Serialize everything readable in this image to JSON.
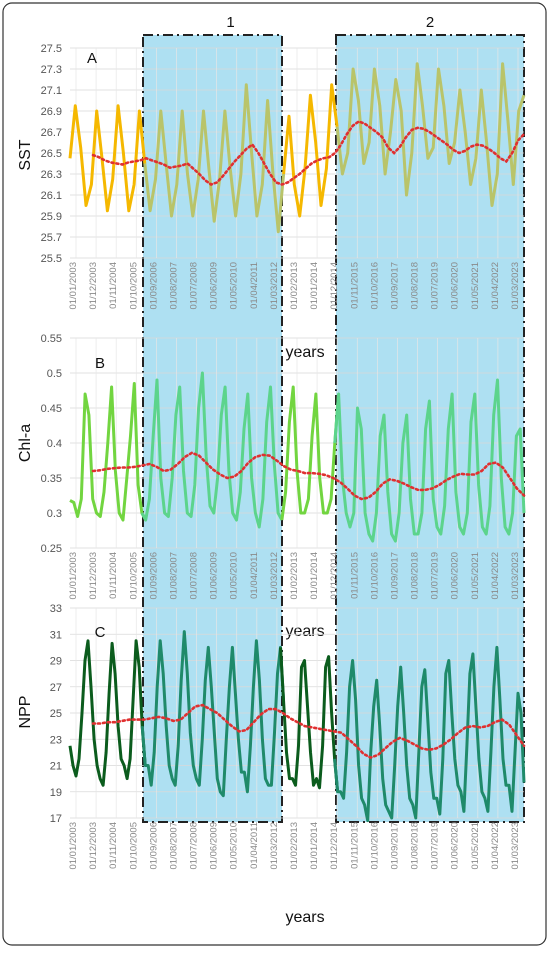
{
  "chart_data": [
    {
      "type": "line",
      "panel_letter": "A",
      "ylabel": "SST",
      "xlabel": "years",
      "ylim": [
        25.5,
        27.5
      ],
      "yticks": [
        "25.5",
        "25.7",
        "25.9",
        "26.1",
        "26.3",
        "26.5",
        "26.7",
        "26.9",
        "27.1",
        "27.3",
        "27.5"
      ],
      "colors": {
        "early": "#f5b800",
        "late": "#b9c46a",
        "trend": "#e03030"
      },
      "period_labels": [
        "1",
        "2"
      ],
      "series": [
        {
          "name": "",
          "values": [
            26.45,
            26.95,
            26.55,
            26.0,
            26.2,
            26.9,
            26.45,
            25.95,
            26.25,
            26.95,
            26.5,
            25.95,
            26.2,
            26.9,
            26.4,
            25.95,
            26.25,
            26.9,
            26.4,
            25.9,
            26.2,
            26.9,
            26.3,
            25.9,
            26.25,
            26.9,
            26.35,
            25.85,
            26.25,
            26.9,
            26.35,
            25.9,
            26.3,
            27.15,
            26.5,
            25.9,
            26.2,
            27.0,
            26.3,
            25.75,
            26.3,
            26.85,
            26.2,
            25.9,
            26.35,
            27.05,
            26.6,
            26.0,
            26.35,
            27.15,
            26.75,
            26.3,
            26.5,
            27.3,
            27.0,
            26.4,
            26.6,
            27.3,
            26.95,
            26.3,
            26.7,
            27.2,
            26.9,
            26.1,
            26.5,
            27.35,
            26.95,
            26.45,
            26.55,
            27.3,
            26.95,
            26.4,
            26.6,
            27.1,
            26.7,
            26.2,
            26.45,
            27.1,
            26.6,
            26.0,
            26.3,
            27.35,
            26.8,
            26.2,
            26.9,
            27.05
          ]
        },
        {
          "name": "",
          "values": [
            26.48,
            26.46,
            26.43,
            26.41,
            26.4,
            26.39,
            26.41,
            26.42,
            26.43,
            26.45,
            26.43,
            26.41,
            26.39,
            26.36,
            26.37,
            26.38,
            26.4,
            26.35,
            26.3,
            26.24,
            26.2,
            26.22,
            26.28,
            26.35,
            26.42,
            26.48,
            26.54,
            26.58,
            26.5,
            26.4,
            26.3,
            26.22,
            26.2,
            26.22,
            26.26,
            26.3,
            26.35,
            26.4,
            26.43,
            26.45,
            26.46,
            26.5,
            26.58,
            26.68,
            26.76,
            26.8,
            26.78,
            26.74,
            26.7,
            26.65,
            26.55,
            26.5,
            26.56,
            26.65,
            26.72,
            26.74,
            26.73,
            26.7,
            26.66,
            26.62,
            26.58,
            26.53,
            26.5,
            26.52,
            26.56,
            26.58,
            26.57,
            26.54,
            26.5,
            26.45,
            26.42,
            26.5,
            26.62,
            26.68
          ]
        }
      ]
    },
    {
      "type": "line",
      "panel_letter": "B",
      "ylabel": "Chl-a",
      "xlabel": "years",
      "ylim": [
        0.25,
        0.55
      ],
      "yticks": [
        "0.25",
        "0.3",
        "0.35",
        "0.4",
        "0.45",
        "0.5",
        "0.55"
      ],
      "colors": {
        "early": "#72d540",
        "late": "#5cd48c",
        "trend": "#e03030"
      },
      "series": [
        {
          "name": "",
          "values": [
            0.318,
            0.315,
            0.295,
            0.32,
            0.47,
            0.44,
            0.32,
            0.3,
            0.295,
            0.33,
            0.4,
            0.48,
            0.36,
            0.3,
            0.29,
            0.35,
            0.41,
            0.485,
            0.34,
            0.3,
            0.29,
            0.32,
            0.41,
            0.49,
            0.35,
            0.3,
            0.295,
            0.35,
            0.44,
            0.48,
            0.36,
            0.3,
            0.295,
            0.34,
            0.45,
            0.5,
            0.38,
            0.31,
            0.3,
            0.35,
            0.44,
            0.48,
            0.36,
            0.3,
            0.29,
            0.33,
            0.42,
            0.47,
            0.35,
            0.3,
            0.28,
            0.32,
            0.43,
            0.48,
            0.37,
            0.3,
            0.29,
            0.33,
            0.43,
            0.48,
            0.36,
            0.3,
            0.3,
            0.32,
            0.41,
            0.47,
            0.35,
            0.3,
            0.3,
            0.32,
            0.4,
            0.47,
            0.35,
            0.3,
            0.28,
            0.3,
            0.45,
            0.42,
            0.3,
            0.27,
            0.26,
            0.3,
            0.41,
            0.44,
            0.33,
            0.27,
            0.26,
            0.3,
            0.4,
            0.44,
            0.32,
            0.27,
            0.27,
            0.3,
            0.42,
            0.46,
            0.32,
            0.28,
            0.27,
            0.31,
            0.42,
            0.47,
            0.33,
            0.28,
            0.27,
            0.3,
            0.43,
            0.47,
            0.34,
            0.28,
            0.27,
            0.31,
            0.44,
            0.49,
            0.35,
            0.28,
            0.27,
            0.3,
            0.41,
            0.42,
            0.3
          ]
        },
        {
          "name": "",
          "values": [
            0.36,
            0.361,
            0.363,
            0.364,
            0.365,
            0.365,
            0.366,
            0.368,
            0.37,
            0.366,
            0.36,
            0.362,
            0.37,
            0.38,
            0.386,
            0.382,
            0.372,
            0.362,
            0.355,
            0.35,
            0.352,
            0.36,
            0.372,
            0.38,
            0.383,
            0.382,
            0.375,
            0.367,
            0.362,
            0.36,
            0.357,
            0.357,
            0.356,
            0.354,
            0.35,
            0.344,
            0.335,
            0.325,
            0.32,
            0.322,
            0.33,
            0.342,
            0.348,
            0.346,
            0.342,
            0.337,
            0.333,
            0.333,
            0.335,
            0.34,
            0.347,
            0.352,
            0.356,
            0.355,
            0.355,
            0.36,
            0.37,
            0.372,
            0.365,
            0.35,
            0.335,
            0.325
          ]
        }
      ]
    },
    {
      "type": "line",
      "panel_letter": "C",
      "ylabel": "NPP",
      "xlabel": "years",
      "ylim": [
        17,
        33
      ],
      "yticks": [
        "17",
        "19",
        "21",
        "23",
        "25",
        "27",
        "29",
        "31",
        "33"
      ],
      "colors": {
        "early": "#0b5c1d",
        "late": "#1f8a6a",
        "trend": "#e03030"
      },
      "series": [
        {
          "name": "",
          "values": [
            22.5,
            21.0,
            20.2,
            21.5,
            25.0,
            29.0,
            30.5,
            27.0,
            23.0,
            21.0,
            20.0,
            19.5,
            22.0,
            26.5,
            30.3,
            28.0,
            24.0,
            21.5,
            21.0,
            20.0,
            21.5,
            26.0,
            30.5,
            28.5,
            24.0,
            21.0,
            21.0,
            19.5,
            22.0,
            27.0,
            30.5,
            28.0,
            24.0,
            21.0,
            20.0,
            19.5,
            22.5,
            27.5,
            31.2,
            28.0,
            23.5,
            21.0,
            20.0,
            19.5,
            23.0,
            27.5,
            30.0,
            27.0,
            23.5,
            20.0,
            19.0,
            18.7,
            23.0,
            27.0,
            30.0,
            26.5,
            23.0,
            20.5,
            20.5,
            19.0,
            22.5,
            27.0,
            30.5,
            27.5,
            23.0,
            20.0,
            19.5,
            19.5,
            23.5,
            28.0,
            30.0,
            26.0,
            22.0,
            20.0,
            20.0,
            19.5,
            22.5,
            28.5,
            29.0,
            25.5,
            22.0,
            19.5,
            20.0,
            19.3,
            22.5,
            28.5,
            29.3,
            25.0,
            21.5,
            19.0,
            19.0,
            18.5,
            22.0,
            27.0,
            29.0,
            26.0,
            21.0,
            18.5,
            18.0,
            16.8,
            22.0,
            25.5,
            27.5,
            24.0,
            20.0,
            18.0,
            17.5,
            17.0,
            21.0,
            25.5,
            28.5,
            25.0,
            21.0,
            18.5,
            18.0,
            17.0,
            22.0,
            27.0,
            28.3,
            24.5,
            20.5,
            18.5,
            18.5,
            17.3,
            21.5,
            28.0,
            29.0,
            25.0,
            21.5,
            19.5,
            19.0,
            17.5,
            22.5,
            28.0,
            29.5,
            25.5,
            21.5,
            19.0,
            18.5,
            17.5,
            22.0,
            27.0,
            30.0,
            26.0,
            21.5,
            19.5,
            19.5,
            17.5,
            22.0,
            26.5,
            25.0,
            19.7
          ]
        },
        {
          "name": "",
          "values": [
            24.2,
            24.2,
            24.3,
            24.3,
            24.4,
            24.5,
            24.5,
            24.5,
            24.6,
            24.7,
            24.6,
            24.4,
            24.5,
            25.0,
            25.5,
            25.6,
            25.3,
            25.0,
            24.5,
            24.0,
            23.6,
            23.7,
            24.3,
            24.9,
            25.3,
            25.3,
            25.0,
            24.6,
            24.3,
            24.0,
            23.9,
            23.8,
            23.7,
            23.6,
            23.5,
            23.0,
            22.5,
            21.9,
            21.6,
            21.8,
            22.3,
            22.8,
            23.1,
            22.9,
            22.6,
            22.3,
            22.2,
            22.3,
            22.6,
            23.0,
            23.5,
            23.9,
            24.0,
            23.9,
            24.0,
            24.3,
            24.5,
            24.1,
            23.3,
            22.5
          ]
        }
      ]
    }
  ],
  "x_tick_labels": [
    "01/01/2003",
    "01/12/2003",
    "01/11/2004",
    "01/10/2005",
    "01/09/2006",
    "01/08/2007",
    "01/07/2008",
    "01/06/2009",
    "01/05/2010",
    "01/04/2011",
    "01/03/2012",
    "01/02/2013",
    "01/01/2014",
    "01/12/2014",
    "01/11/2015",
    "01/10/2016",
    "01/09/2017",
    "01/08/2018",
    "01/07/2019",
    "01/06/2020",
    "01/05/2021",
    "01/04/2022",
    "01/03/2023"
  ]
}
